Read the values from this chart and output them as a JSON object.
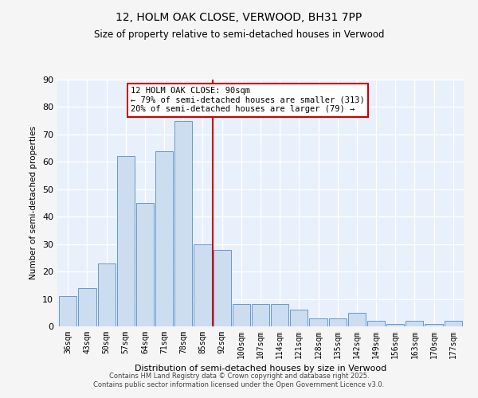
{
  "title": "12, HOLM OAK CLOSE, VERWOOD, BH31 7PP",
  "subtitle": "Size of property relative to semi-detached houses in Verwood",
  "xlabel": "Distribution of semi-detached houses by size in Verwood",
  "ylabel": "Number of semi-detached properties",
  "categories": [
    "36sqm",
    "43sqm",
    "50sqm",
    "57sqm",
    "64sqm",
    "71sqm",
    "78sqm",
    "85sqm",
    "92sqm",
    "100sqm",
    "107sqm",
    "114sqm",
    "121sqm",
    "128sqm",
    "135sqm",
    "142sqm",
    "149sqm",
    "156sqm",
    "163sqm",
    "170sqm",
    "177sqm"
  ],
  "values": [
    11,
    14,
    23,
    62,
    45,
    64,
    75,
    30,
    28,
    8,
    8,
    8,
    6,
    3,
    3,
    5,
    2,
    1,
    2,
    1,
    2
  ],
  "bar_color": "#ccddf0",
  "bar_edge_color": "#6699cc",
  "vline_x_idx": 8,
  "vline_color": "#cc0000",
  "annotation_title": "12 HOLM OAK CLOSE: 90sqm",
  "annotation_line1": "← 79% of semi-detached houses are smaller (313)",
  "annotation_line2": "20% of semi-detached houses are larger (79) →",
  "annotation_box_color": "#ffffff",
  "annotation_box_edge": "#cc0000",
  "ylim": [
    0,
    90
  ],
  "yticks": [
    0,
    10,
    20,
    30,
    40,
    50,
    60,
    70,
    80,
    90
  ],
  "bg_color": "#e8f0fb",
  "grid_color": "#ffffff",
  "footer1": "Contains HM Land Registry data © Crown copyright and database right 2025.",
  "footer2": "Contains public sector information licensed under the Open Government Licence v3.0."
}
